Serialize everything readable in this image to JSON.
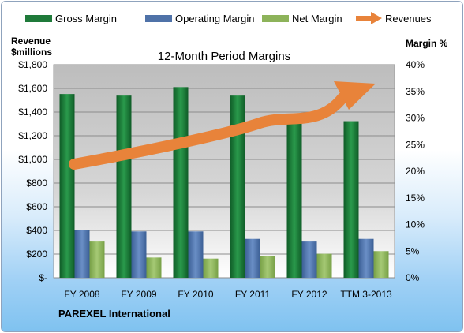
{
  "chart_data": {
    "type": "bar",
    "title": "12-Month Period Margins",
    "categories": [
      "FY 2008",
      "FY 2009",
      "FY 2010",
      "FY 2011",
      "FY 2012",
      "TTM 3-2013"
    ],
    "series": [
      {
        "name": "Gross Margin",
        "axis": "right",
        "unit": "%",
        "color": "#1f7a3a",
        "values": [
          34.5,
          34.2,
          35.8,
          34.2,
          30.4,
          29.4
        ]
      },
      {
        "name": "Operating Margin",
        "axis": "right",
        "unit": "%",
        "color": "#4f72a8",
        "values": [
          9.0,
          8.7,
          8.7,
          7.3,
          6.8,
          7.3
        ]
      },
      {
        "name": "Net Margin",
        "axis": "right",
        "unit": "%",
        "color": "#8db35a",
        "values": [
          6.8,
          3.8,
          3.6,
          4.1,
          4.5,
          5.0
        ]
      }
    ],
    "revenue_series": {
      "name": "Revenues",
      "type": "arrow",
      "color": "#e8833a",
      "start_value": 960,
      "end_value": 1640
    },
    "left_axis": {
      "label_line1": "Revenue",
      "label_line2": "$millions",
      "min": 0,
      "max": 1800,
      "step": 200,
      "tick_labels": [
        "$-",
        "$200",
        "$400",
        "$600",
        "$800",
        "$1,000",
        "$1,200",
        "$1,400",
        "$1,600",
        "$1,800"
      ]
    },
    "right_axis": {
      "label": "Margin %",
      "min": 0,
      "max": 40,
      "step": 5,
      "tick_labels": [
        "0%",
        "5%",
        "10%",
        "15%",
        "20%",
        "25%",
        "30%",
        "35%",
        "40%"
      ]
    },
    "company": "PAREXEL International",
    "legend_position": "top",
    "grid": true
  }
}
